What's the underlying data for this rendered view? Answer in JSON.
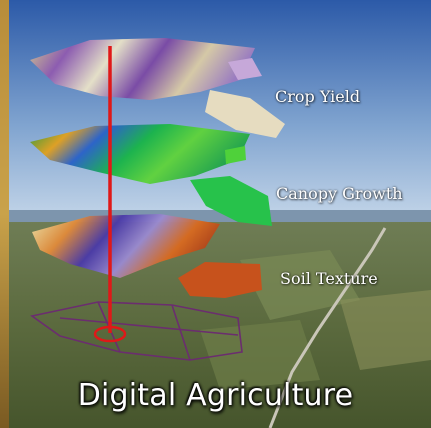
{
  "title": "Digital Agriculture",
  "layers": [
    {
      "label": "Crop Yield"
    },
    {
      "label": "Canopy Growth"
    },
    {
      "label": "Soil Texture"
    }
  ],
  "colors": {
    "sky_top": "#2f5fae",
    "sky_bottom": "#b9cfe4",
    "ground": "#5f6f43",
    "marker_line": "#e01818",
    "field_outline": "#6b2d6f"
  }
}
